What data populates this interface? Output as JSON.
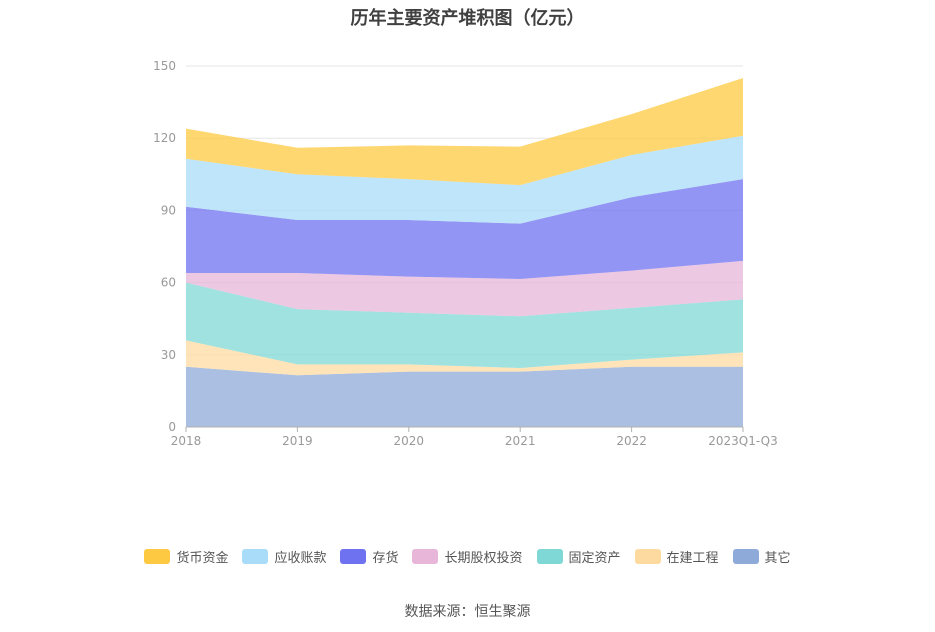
{
  "title": "历年主要资产堆积图（亿元）",
  "source": "数据来源：恒生聚源",
  "chart_data": {
    "type": "area",
    "stacked": true,
    "categories": [
      "2018",
      "2019",
      "2020",
      "2021",
      "2022",
      "2023Q1-Q3"
    ],
    "ylim": [
      0,
      150
    ],
    "yticks": [
      0,
      30,
      60,
      90,
      120,
      150
    ],
    "grid": true,
    "legend_position": "bottom",
    "series": [
      {
        "name": "其它",
        "color": "#8eaad8",
        "values": [
          25,
          21.5,
          23,
          23,
          25,
          25
        ]
      },
      {
        "name": "在建工程",
        "color": "#fddba0",
        "values": [
          11,
          4.5,
          3,
          1.5,
          3,
          6
        ]
      },
      {
        "name": "固定资产",
        "color": "#7fd8d6",
        "values": [
          24,
          23,
          21.5,
          21.5,
          21.5,
          22
        ]
      },
      {
        "name": "长期股权投资",
        "color": "#e7b6d8",
        "values": [
          4,
          15,
          15,
          15.5,
          15.5,
          16
        ]
      },
      {
        "name": "存货",
        "color": "#6f72f0",
        "values": [
          27.5,
          22,
          23.5,
          23,
          30.5,
          34
        ]
      },
      {
        "name": "应收账款",
        "color": "#a9dcf8",
        "values": [
          20,
          19,
          17,
          16,
          17.5,
          18
        ]
      },
      {
        "name": "货币资金",
        "color": "#fdc942",
        "values": [
          12.5,
          11,
          14,
          16,
          17,
          24
        ]
      }
    ]
  }
}
